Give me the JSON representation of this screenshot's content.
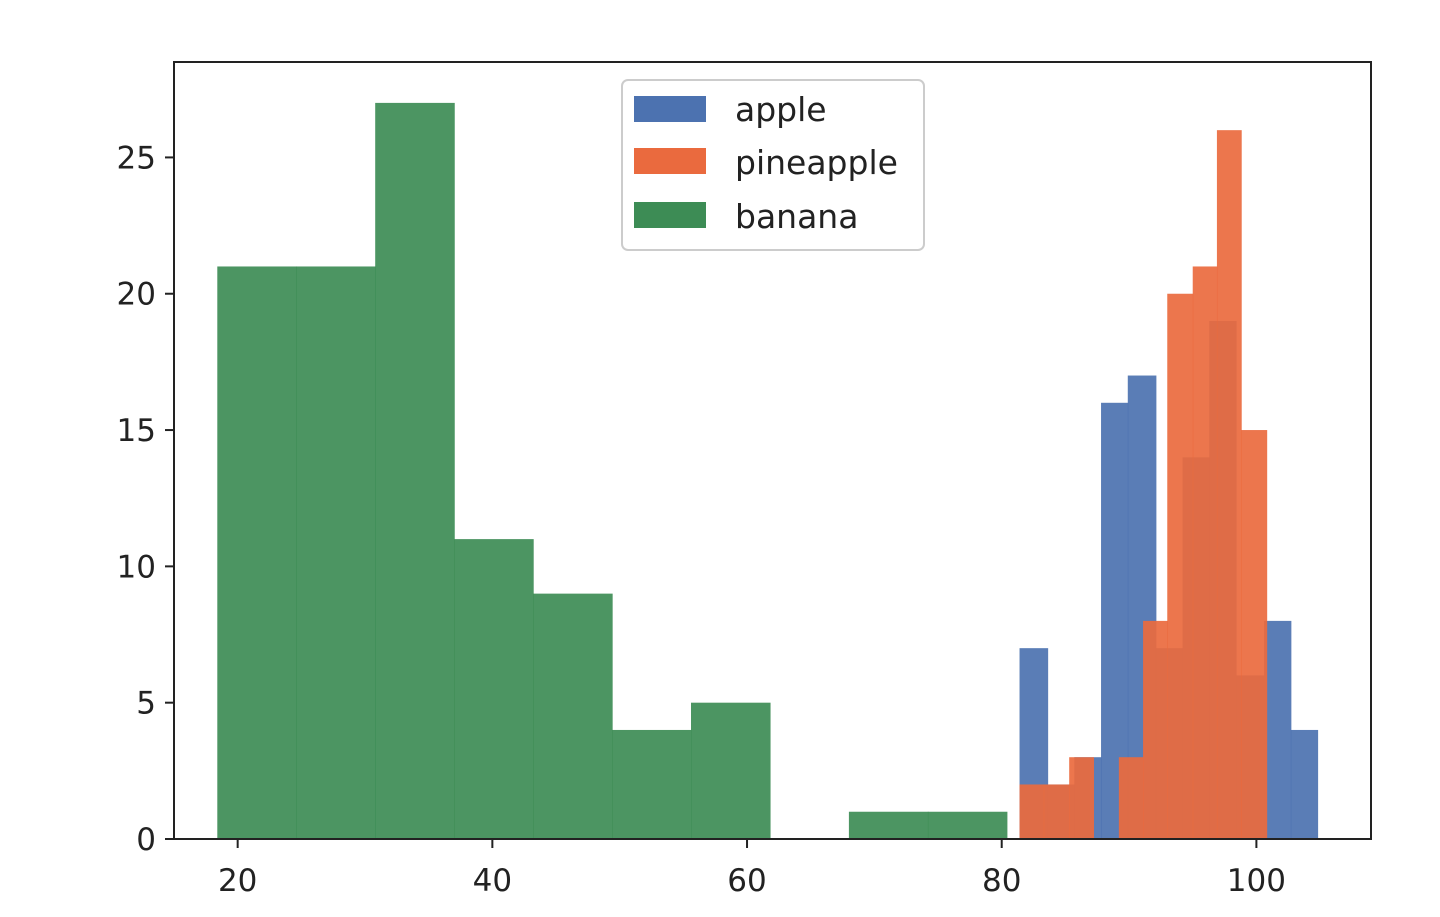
{
  "chart_data": {
    "type": "histogram",
    "title": "",
    "xlabel": "",
    "ylabel": "",
    "xlim": [
      15,
      109
    ],
    "ylim": [
      0,
      28.5
    ],
    "xticks": [
      20,
      40,
      60,
      80,
      100
    ],
    "yticks": [
      0,
      5,
      10,
      15,
      20,
      25
    ],
    "legend": {
      "placement": "upper center"
    },
    "grid": false,
    "series": [
      {
        "name": "apple",
        "color": "#4c72b0",
        "bin_edges": [
          81.4,
          83.6,
          85.7,
          87.8,
          89.9,
          92.1,
          94.2,
          96.3,
          98.4,
          100.6,
          102.7,
          104.8
        ],
        "counts": [
          7,
          2,
          3,
          16,
          17,
          7,
          14,
          19,
          6,
          8,
          4
        ]
      },
      {
        "name": "pineapple",
        "color": "#ea6a3e",
        "bin_edges": [
          81.4,
          83.3,
          85.3,
          87.2,
          89.2,
          91.1,
          93.0,
          95.0,
          96.9,
          98.8,
          100.8
        ],
        "counts": [
          2,
          2,
          3,
          0,
          3,
          8,
          20,
          21,
          26,
          15
        ]
      },
      {
        "name": "banana",
        "color": "#3d8c55",
        "bin_edges": [
          18.4,
          24.6,
          30.8,
          37.0,
          43.2,
          49.4,
          55.6,
          61.8,
          68.0,
          74.2,
          80.4
        ],
        "counts": [
          21,
          21,
          27,
          11,
          9,
          4,
          5,
          0,
          1,
          1
        ]
      }
    ]
  }
}
